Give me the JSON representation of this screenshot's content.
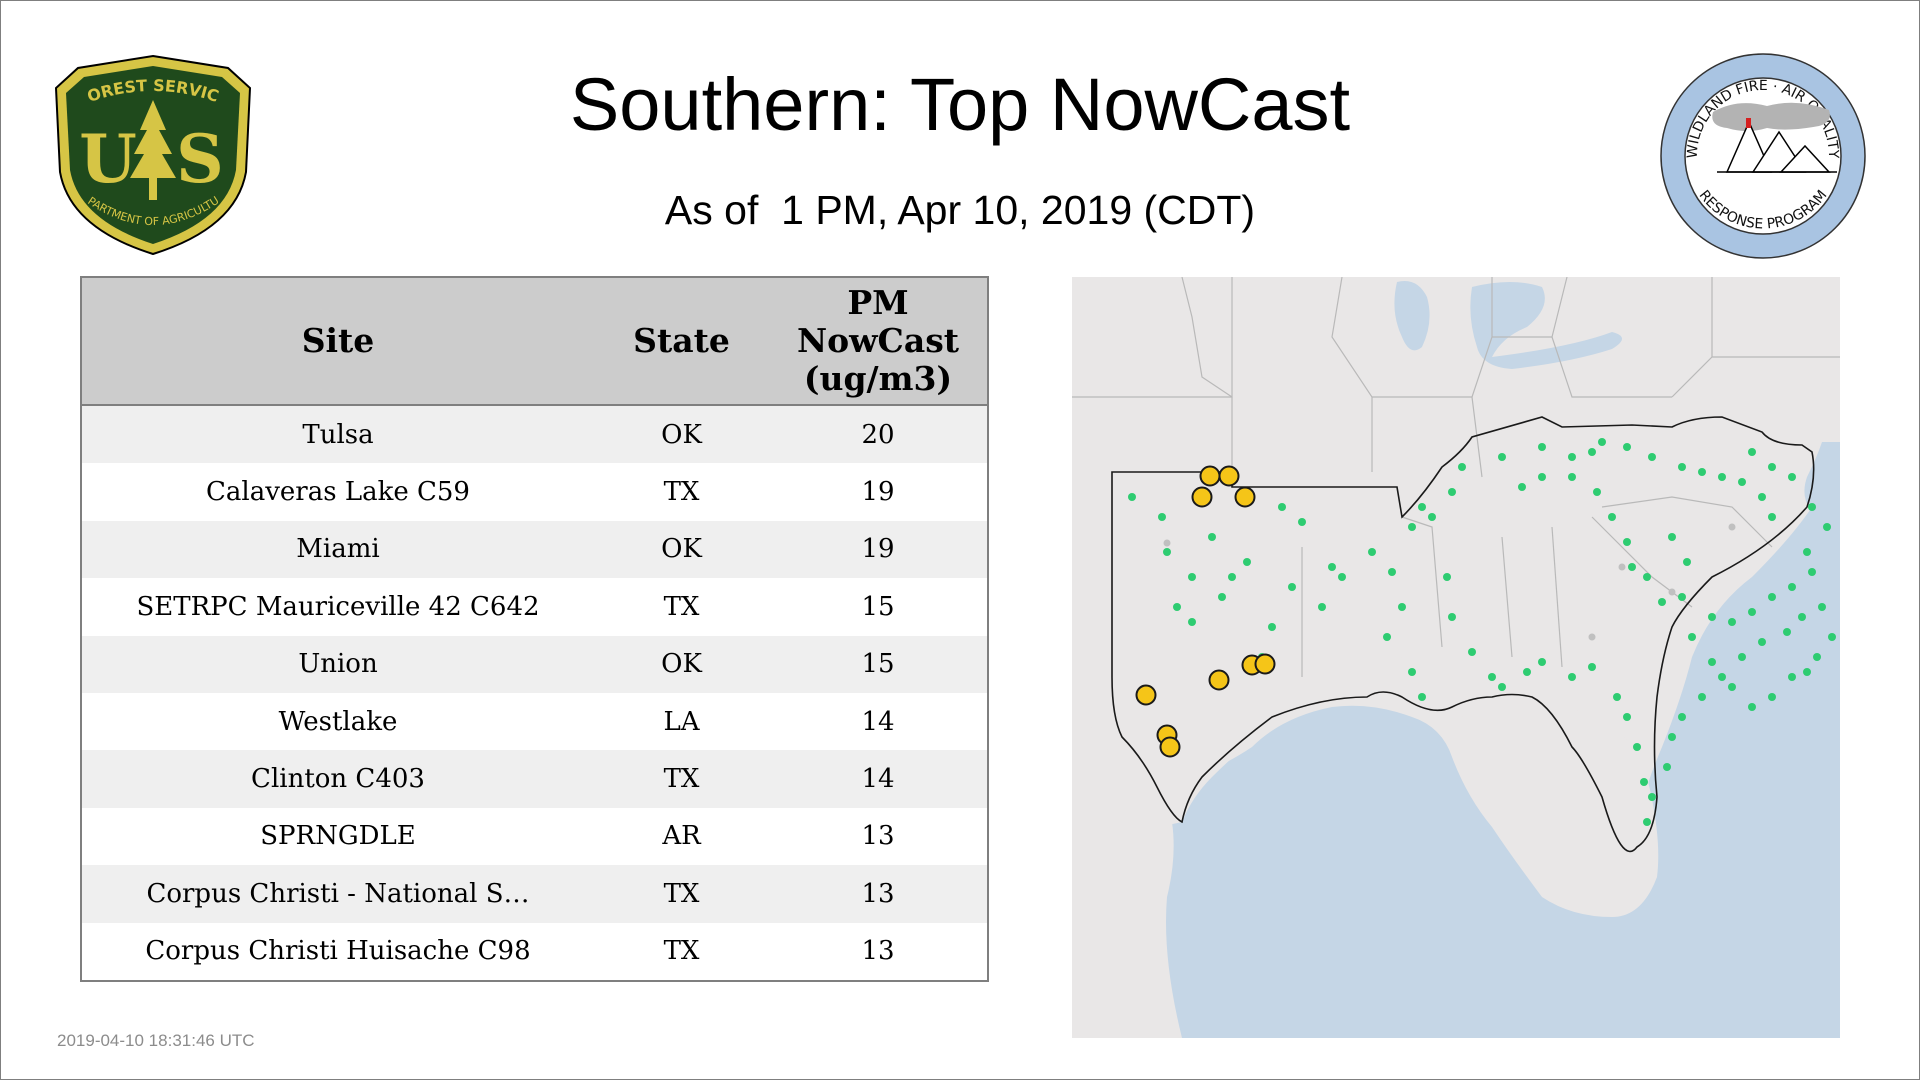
{
  "header": {
    "title": "Southern: Top NowCast",
    "subtitle": "As of  1 PM, Apr 10, 2019 (CDT)"
  },
  "logos": {
    "usfs": {
      "line_top": "FOREST SERVICE",
      "letters": "U S",
      "line_bottom": "DEPARTMENT OF AGRICULTURE",
      "icon": "tree-icon"
    },
    "wfaq": {
      "ring_top": "WILDLAND FIRE · AIR QUALITY",
      "ring_bottom": "RESPONSE PROGRAM",
      "icon": "mountains-smoke-icon"
    }
  },
  "table": {
    "headers": {
      "site": "Site",
      "state": "State",
      "pm_line1": "PM",
      "pm_line2": "NowCast",
      "pm_line3": "(ug/m3)"
    },
    "rows": [
      {
        "site": "Tulsa",
        "state": "OK",
        "value": "20"
      },
      {
        "site": "Calaveras Lake C59",
        "state": "TX",
        "value": "19"
      },
      {
        "site": "Miami",
        "state": "OK",
        "value": "19"
      },
      {
        "site": "SETRPC Mauriceville 42 C642",
        "state": "TX",
        "value": "15"
      },
      {
        "site": "Union",
        "state": "OK",
        "value": "15"
      },
      {
        "site": "Westlake",
        "state": "LA",
        "value": "14"
      },
      {
        "site": "Clinton C403",
        "state": "TX",
        "value": "14"
      },
      {
        "site": "SPRNGDLE",
        "state": "AR",
        "value": "13"
      },
      {
        "site": "Corpus Christi - National S…",
        "state": "TX",
        "value": "13"
      },
      {
        "site": "Corpus Christi Huisache C98",
        "state": "TX",
        "value": "13"
      }
    ]
  },
  "map": {
    "colors": {
      "land": "#e9e7e7",
      "water": "#c5d6e6",
      "state_border": "#b9b9b9",
      "region_border": "#1a1a1a",
      "good": "#2ecc71",
      "moderate": "#f5c518",
      "nodata": "#c0c0c0"
    }
  },
  "footer": {
    "timestamp": "2019-04-10 18:31:46 UTC"
  }
}
